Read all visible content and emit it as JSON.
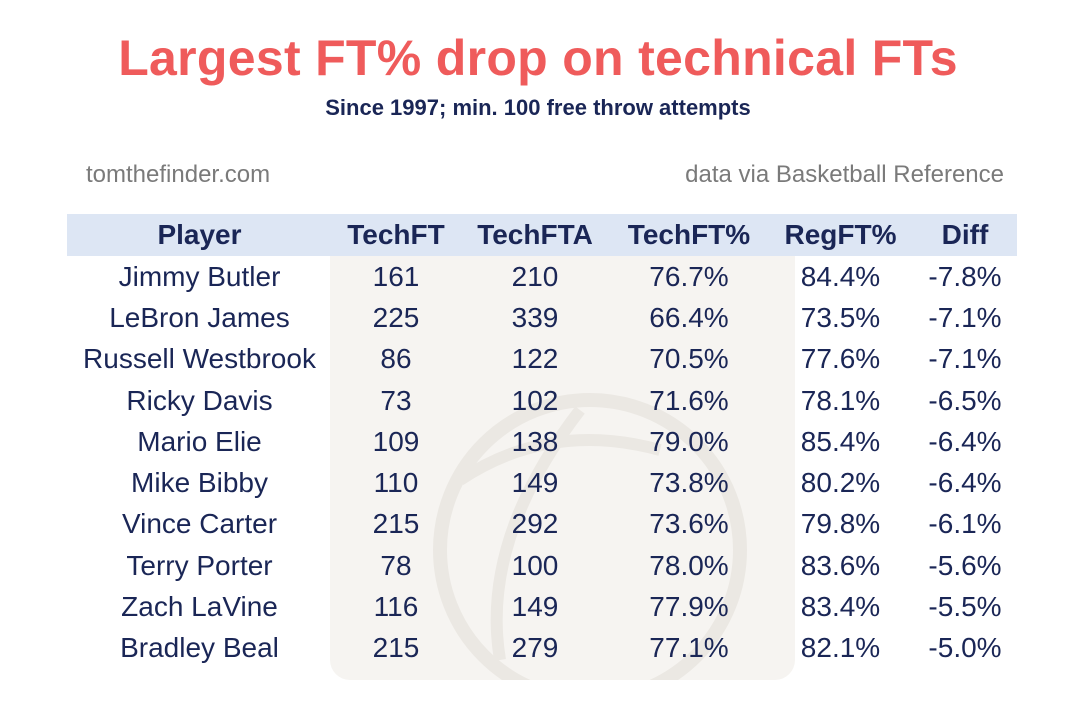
{
  "title": "Largest FT% drop on technical FTs",
  "subtitle": "Since 1997; min. 100 free throw attempts",
  "credit": "tomthefinder.com",
  "source": "data via Basketball Reference",
  "colors": {
    "title": "#ef5b5b",
    "text": "#1a2656",
    "header_bg": "#dde6f4",
    "muted": "#7a7a7a"
  },
  "table": {
    "headers": [
      "Player",
      "TechFT",
      "TechFTA",
      "TechFT%",
      "RegFT%",
      "Diff"
    ],
    "rows": [
      [
        "Jimmy Butler",
        "161",
        "210",
        "76.7%",
        "84.4%",
        "-7.8%"
      ],
      [
        "LeBron James",
        "225",
        "339",
        "66.4%",
        "73.5%",
        "-7.1%"
      ],
      [
        "Russell Westbrook",
        "86",
        "122",
        "70.5%",
        "77.6%",
        "-7.1%"
      ],
      [
        "Ricky Davis",
        "73",
        "102",
        "71.6%",
        "78.1%",
        "-6.5%"
      ],
      [
        "Mario Elie",
        "109",
        "138",
        "79.0%",
        "85.4%",
        "-6.4%"
      ],
      [
        "Mike Bibby",
        "110",
        "149",
        "73.8%",
        "80.2%",
        "-6.4%"
      ],
      [
        "Vince Carter",
        "215",
        "292",
        "73.6%",
        "79.8%",
        "-6.1%"
      ],
      [
        "Terry Porter",
        "78",
        "100",
        "78.0%",
        "83.6%",
        "-5.6%"
      ],
      [
        "Zach LaVine",
        "116",
        "149",
        "77.9%",
        "83.4%",
        "-5.5%"
      ],
      [
        "Bradley Beal",
        "215",
        "279",
        "77.1%",
        "82.1%",
        "-5.0%"
      ]
    ]
  }
}
